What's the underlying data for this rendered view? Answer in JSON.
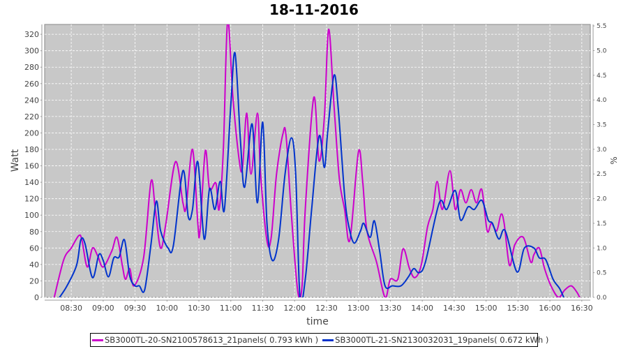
{
  "chart_data": {
    "type": "line",
    "title": "18-11-2016",
    "xlabel": "time",
    "ylabel": "Watt",
    "y2label": "%",
    "xlim": [
      "08:05",
      "16:38"
    ],
    "ylim": [
      0,
      332
    ],
    "y2lim": [
      0,
      5.53
    ],
    "grid": true,
    "legend_position": "bottom",
    "x_ticks": [
      "08:30",
      "09:00",
      "09:30",
      "10:00",
      "10:30",
      "11:00",
      "11:30",
      "12:00",
      "12:30",
      "13:00",
      "13:30",
      "14:00",
      "14:30",
      "15:00",
      "15:30",
      "16:00",
      "16:30"
    ],
    "y_ticks": [
      0,
      20,
      40,
      60,
      80,
      100,
      120,
      140,
      160,
      180,
      200,
      220,
      240,
      260,
      280,
      300,
      320
    ],
    "y2_ticks": [
      "0.0",
      "0.5",
      "1.0",
      "1.5",
      "2.0",
      "2.5",
      "3.0",
      "3.5",
      "4.0",
      "4.5",
      "5.0",
      "5.5"
    ],
    "series": [
      {
        "name": "SB3000TL-20-SN2100578613_21panels",
        "legend_label": "SB3000TL-20-SN2100578613_21panels( 0.793 kWh )",
        "color": "#cc00cc",
        "points": [
          [
            "08:14",
            0
          ],
          [
            "08:23",
            46
          ],
          [
            "08:30",
            60
          ],
          [
            "08:37",
            75
          ],
          [
            "08:40",
            70
          ],
          [
            "08:45",
            37
          ],
          [
            "08:50",
            60
          ],
          [
            "08:55",
            50
          ],
          [
            "09:00",
            37
          ],
          [
            "09:08",
            56
          ],
          [
            "09:13",
            73
          ],
          [
            "09:18",
            39
          ],
          [
            "09:21",
            22
          ],
          [
            "09:25",
            35
          ],
          [
            "09:29",
            14
          ],
          [
            "09:38",
            48
          ],
          [
            "09:45",
            141
          ],
          [
            "09:49",
            107
          ],
          [
            "09:54",
            60
          ],
          [
            "09:59",
            90
          ],
          [
            "10:08",
            165
          ],
          [
            "10:15",
            115
          ],
          [
            "10:18",
            110
          ],
          [
            "10:24",
            180
          ],
          [
            "10:29",
            90
          ],
          [
            "10:31",
            80
          ],
          [
            "10:36",
            178
          ],
          [
            "10:40",
            132
          ],
          [
            "10:46",
            139
          ],
          [
            "10:49",
            107
          ],
          [
            "10:53",
            180
          ],
          [
            "10:57",
            336
          ],
          [
            "11:02",
            243
          ],
          [
            "11:08",
            166
          ],
          [
            "11:11",
            158
          ],
          [
            "11:15",
            224
          ],
          [
            "11:19",
            150
          ],
          [
            "11:25",
            224
          ],
          [
            "11:28",
            150
          ],
          [
            "11:34",
            69
          ],
          [
            "11:38",
            73
          ],
          [
            "11:43",
            150
          ],
          [
            "11:49",
            199
          ],
          [
            "11:52",
            196
          ],
          [
            "11:57",
            100
          ],
          [
            "12:03",
            7
          ],
          [
            "12:07",
            14
          ],
          [
            "12:10",
            107
          ],
          [
            "12:18",
            243
          ],
          [
            "12:23",
            166
          ],
          [
            "12:28",
            220
          ],
          [
            "12:32",
            326
          ],
          [
            "12:37",
            234
          ],
          [
            "12:42",
            145
          ],
          [
            "12:47",
            107
          ],
          [
            "12:52",
            70
          ],
          [
            "13:00",
            177
          ],
          [
            "13:04",
            141
          ],
          [
            "13:08",
            81
          ],
          [
            "13:17",
            43
          ],
          [
            "13:25",
            0
          ],
          [
            "13:30",
            22
          ],
          [
            "13:37",
            22
          ],
          [
            "13:42",
            59
          ],
          [
            "13:48",
            35
          ],
          [
            "13:53",
            24
          ],
          [
            "13:59",
            39
          ],
          [
            "14:05",
            86
          ],
          [
            "14:10",
            107
          ],
          [
            "14:14",
            141
          ],
          [
            "14:19",
            107
          ],
          [
            "14:26",
            154
          ],
          [
            "14:31",
            107
          ],
          [
            "14:36",
            131
          ],
          [
            "14:41",
            115
          ],
          [
            "14:46",
            131
          ],
          [
            "14:51",
            115
          ],
          [
            "14:56",
            131
          ],
          [
            "15:01",
            81
          ],
          [
            "15:05",
            90
          ],
          [
            "15:10",
            81
          ],
          [
            "15:14",
            101
          ],
          [
            "15:17",
            90
          ],
          [
            "15:22",
            39
          ],
          [
            "15:27",
            64
          ],
          [
            "15:35",
            73
          ],
          [
            "15:42",
            43
          ],
          [
            "15:45",
            52
          ],
          [
            "15:50",
            60
          ],
          [
            "15:55",
            35
          ],
          [
            "16:01",
            14
          ],
          [
            "16:08",
            0
          ],
          [
            "16:14",
            9
          ],
          [
            "16:20",
            14
          ],
          [
            "16:25",
            7
          ],
          [
            "16:28",
            0
          ]
        ]
      },
      {
        "name": "SB3000TL-21-SN2130032031_19panels",
        "legend_label": "SB3000TL-21-SN2130032031_19panels( 0.672 kWh )",
        "color": "#0033cc",
        "points": [
          [
            "08:19",
            0
          ],
          [
            "08:26",
            14
          ],
          [
            "08:35",
            39
          ],
          [
            "08:39",
            70
          ],
          [
            "08:43",
            65
          ],
          [
            "08:50",
            24
          ],
          [
            "08:56",
            52
          ],
          [
            "09:00",
            45
          ],
          [
            "09:05",
            25
          ],
          [
            "09:10",
            48
          ],
          [
            "09:15",
            49
          ],
          [
            "09:20",
            70
          ],
          [
            "09:25",
            26
          ],
          [
            "09:30",
            14
          ],
          [
            "09:34",
            14
          ],
          [
            "09:39",
            9
          ],
          [
            "09:45",
            65
          ],
          [
            "09:50",
            117
          ],
          [
            "09:54",
            81
          ],
          [
            "10:01",
            60
          ],
          [
            "10:06",
            63
          ],
          [
            "10:15",
            154
          ],
          [
            "10:20",
            98
          ],
          [
            "10:24",
            107
          ],
          [
            "10:29",
            165
          ],
          [
            "10:35",
            71
          ],
          [
            "10:40",
            132
          ],
          [
            "10:45",
            107
          ],
          [
            "10:50",
            141
          ],
          [
            "10:54",
            107
          ],
          [
            "11:00",
            234
          ],
          [
            "11:04",
            297
          ],
          [
            "11:09",
            192
          ],
          [
            "11:13",
            134
          ],
          [
            "11:20",
            211
          ],
          [
            "11:25",
            115
          ],
          [
            "11:30",
            213
          ],
          [
            "11:34",
            90
          ],
          [
            "11:39",
            45
          ],
          [
            "11:45",
            71
          ],
          [
            "11:51",
            150
          ],
          [
            "11:57",
            194
          ],
          [
            "12:01",
            150
          ],
          [
            "12:05",
            0
          ],
          [
            "12:10",
            22
          ],
          [
            "12:16",
            107
          ],
          [
            "12:23",
            196
          ],
          [
            "12:28",
            158
          ],
          [
            "12:31",
            200
          ],
          [
            "12:37",
            270
          ],
          [
            "12:41",
            230
          ],
          [
            "12:47",
            124
          ],
          [
            "12:51",
            86
          ],
          [
            "12:56",
            66
          ],
          [
            "13:02",
            81
          ],
          [
            "13:05",
            90
          ],
          [
            "13:11",
            73
          ],
          [
            "13:15",
            93
          ],
          [
            "13:20",
            56
          ],
          [
            "13:25",
            14
          ],
          [
            "13:32",
            14
          ],
          [
            "13:40",
            14
          ],
          [
            "13:47",
            25
          ],
          [
            "13:52",
            35
          ],
          [
            "13:57",
            30
          ],
          [
            "14:03",
            43
          ],
          [
            "14:16",
            115
          ],
          [
            "14:23",
            107
          ],
          [
            "14:31",
            130
          ],
          [
            "14:36",
            94
          ],
          [
            "14:43",
            110
          ],
          [
            "14:49",
            107
          ],
          [
            "14:56",
            118
          ],
          [
            "15:02",
            94
          ],
          [
            "15:06",
            90
          ],
          [
            "15:12",
            71
          ],
          [
            "15:18",
            81
          ],
          [
            "15:29",
            31
          ],
          [
            "15:36",
            60
          ],
          [
            "15:45",
            60
          ],
          [
            "15:50",
            48
          ],
          [
            "15:56",
            46
          ],
          [
            "16:03",
            22
          ],
          [
            "16:09",
            11
          ],
          [
            "16:13",
            0
          ]
        ]
      }
    ]
  }
}
